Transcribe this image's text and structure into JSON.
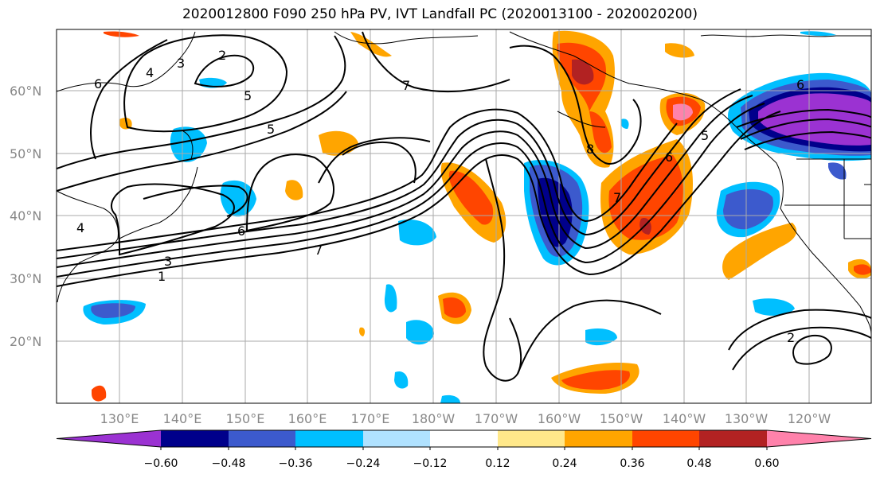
{
  "title": "2020012800 F090 250 hPa PV, IVT Landfall PC (2020013100 - 2020020200)",
  "map": {
    "lat_labels": [
      "60°N",
      "50°N",
      "40°N",
      "30°N",
      "20°N"
    ],
    "lon_labels": [
      "130°E",
      "140°E",
      "150°E",
      "160°E",
      "170°E",
      "180°W",
      "170°W",
      "160°W",
      "150°W",
      "140°W",
      "130°W",
      "120°W"
    ],
    "contour_labels": [
      "6",
      "4",
      "3",
      "2",
      "5",
      "7",
      "6",
      "5",
      "8",
      "7",
      "6",
      "5",
      "6",
      "4",
      "1",
      "3",
      "7",
      "2"
    ],
    "grid": true
  },
  "colorbar": {
    "tick_labels": [
      "−0.60",
      "−0.48",
      "−0.36",
      "−0.24",
      "−0.12",
      "0.12",
      "0.24",
      "0.36",
      "0.48",
      "0.60"
    ],
    "colors": [
      "#9b32d2",
      "#00008b",
      "#3c5acd",
      "#00bfff",
      "#b0e2ff",
      "#ffffff",
      "#ffe88a",
      "#ffa500",
      "#ff4500",
      "#b22222",
      "#ff82ab"
    ],
    "extend": "both"
  }
}
